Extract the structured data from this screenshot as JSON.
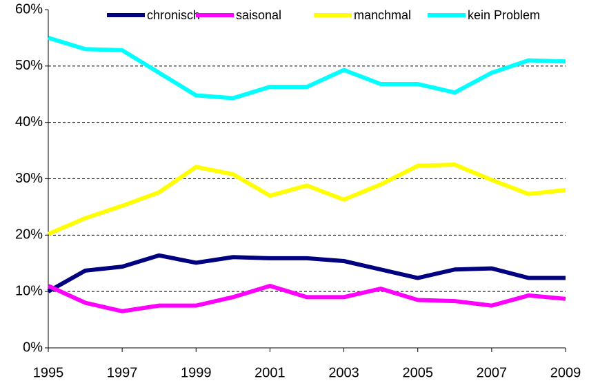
{
  "chart_data": {
    "type": "line",
    "x": [
      1995,
      1996,
      1997,
      1998,
      1999,
      2000,
      2001,
      2002,
      2003,
      2004,
      2005,
      2006,
      2007,
      2008,
      2009
    ],
    "series": [
      {
        "name": "chronisch",
        "color": "#000080",
        "values": [
          10,
          13.7,
          14.4,
          16.4,
          15.1,
          16.1,
          15.9,
          15.9,
          15.4,
          13.9,
          12.4,
          13.9,
          14.1,
          12.4,
          12.4
        ]
      },
      {
        "name": "saisonal",
        "color": "#ff00ff",
        "values": [
          11,
          8,
          6.5,
          7.5,
          7.5,
          9,
          11,
          9,
          9,
          10.5,
          8.5,
          8.3,
          7.5,
          9.3,
          8.7
        ]
      },
      {
        "name": "manchmal",
        "color": "#ffff00",
        "values": [
          20.2,
          23,
          25.2,
          27.6,
          32.1,
          30.8,
          27,
          28.8,
          26.3,
          29,
          32.3,
          32.5,
          29.8,
          27.3,
          28
        ]
      },
      {
        "name": "kein Problem",
        "color": "#00ffff",
        "values": [
          55,
          53,
          52.8,
          48.8,
          44.8,
          44.3,
          46.3,
          46.3,
          49.3,
          46.8,
          46.8,
          45.3,
          48.8,
          51,
          50.8
        ]
      }
    ],
    "xlim": [
      1995,
      2009
    ],
    "xticks": [
      1995,
      1997,
      1999,
      2001,
      2003,
      2005,
      2007,
      2009
    ],
    "ylim": [
      0,
      60
    ],
    "yticks": [
      {
        "value": 0,
        "label": "0%"
      },
      {
        "value": 10,
        "label": "10%"
      },
      {
        "value": 20,
        "label": "20%"
      },
      {
        "value": 30,
        "label": "30%"
      },
      {
        "value": 40,
        "label": "40%"
      },
      {
        "value": 50,
        "label": "50%"
      },
      {
        "value": 60,
        "label": "60%"
      }
    ],
    "grid": true,
    "legend": "top"
  }
}
